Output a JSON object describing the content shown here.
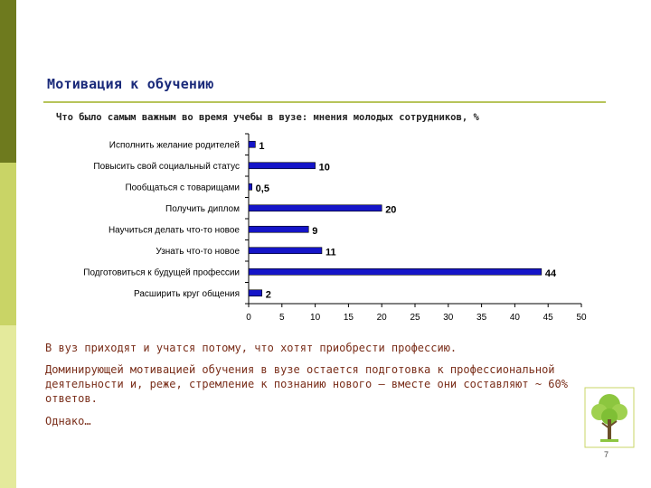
{
  "slide": {
    "title": "Мотивация к обучению",
    "page_number": "7",
    "icon": "tree-icon"
  },
  "colors": {
    "bar": "#1515c8",
    "accent_dark": "#6e7a1e",
    "accent_mid": "#c9d466",
    "accent_light": "#e4ea9c",
    "text_note": "#7a2e1a"
  },
  "chart_data": {
    "type": "bar",
    "orientation": "horizontal",
    "title": "Что было самым важным во время учебы в вузе: мнения молодых сотрудников, %",
    "categories": [
      "Исполнить желание родителей",
      "Повысить свой социальный статус",
      "Пообщаться с товарищами",
      "Получить диплом",
      "Научиться делать что-то новое",
      "Узнать что-то новое",
      "Подготовиться к будущей профессии",
      "Расширить круг общения"
    ],
    "values": [
      1,
      10,
      0.5,
      20,
      9,
      11,
      44,
      2
    ],
    "data_labels": [
      "1",
      "10",
      "0,5",
      "20",
      "9",
      "11",
      "44",
      "2"
    ],
    "xlim": [
      0,
      50
    ],
    "xticks": [
      0,
      5,
      10,
      15,
      20,
      25,
      30,
      35,
      40,
      45,
      50
    ],
    "grid": false,
    "legend": "none"
  },
  "notes": {
    "line1": "В вуз приходят и учатся потому, что хотят приобрести профессию.",
    "line2": "Доминирующей мотивацией обучения в вузе остается подготовка к профессиональной деятельности и, реже, стремление к познанию нового — вместе они составляют ~ 60% ответов.",
    "line3": "Однако…"
  }
}
